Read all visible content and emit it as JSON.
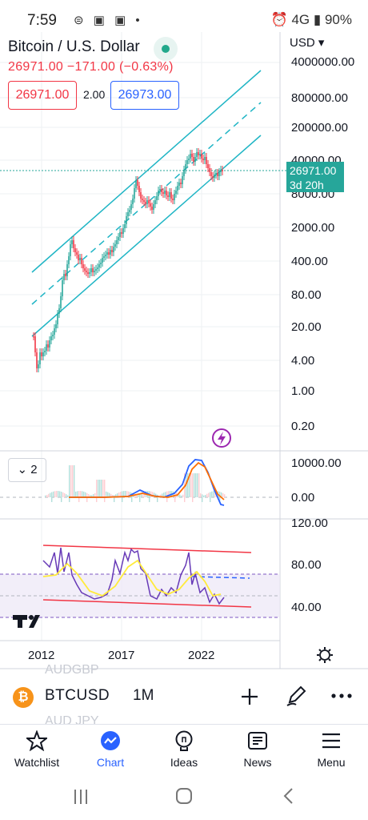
{
  "status_bar": {
    "time": "7:59",
    "battery": "90%",
    "icons": "⊜ ▣ ▣ •",
    "right_icons": "⏰ 4G ▮"
  },
  "header": {
    "title": "Bitcoin / U.S. Dollar",
    "quote": "26971.00  −171.00 (−0.63%)",
    "bid": "26971.00",
    "spread": "2.00",
    "ask": "26973.00",
    "currency": "USD ▾"
  },
  "price_axis": [
    "4000000.00",
    "800000.00",
    "200000.00",
    "40000.00",
    "8000.00",
    "2000.00",
    "400.00",
    "80.00",
    "20.00",
    "4.00",
    "1.00",
    "0.20"
  ],
  "price_tag": {
    "price": "26971.00",
    "countdown": "3d 20h"
  },
  "macd": {
    "toggle_label": "2",
    "axis": [
      "10000.00",
      "0.00"
    ]
  },
  "rsi": {
    "axis": [
      "120.00",
      "80.00",
      "40.00"
    ]
  },
  "time_axis": [
    "2012",
    "2017",
    "2022"
  ],
  "symbol_bar": {
    "symbol": "BTCUSD",
    "timeframe": "1M",
    "ghost_above": "AUDGBP",
    "ghost_below": "AUD JPY"
  },
  "tabs": [
    {
      "label": "Watchlist",
      "icon": "star-icon",
      "active": false
    },
    {
      "label": "Chart",
      "icon": "chart-icon",
      "active": true
    },
    {
      "label": "Ideas",
      "icon": "bulb-icon",
      "active": false
    },
    {
      "label": "News",
      "icon": "news-icon",
      "active": false
    },
    {
      "label": "Menu",
      "icon": "menu-icon",
      "active": false
    }
  ],
  "colors": {
    "up": "#26a69a",
    "down": "#f23645",
    "accent": "#2962ff",
    "channel": "#1fb5c5"
  }
}
